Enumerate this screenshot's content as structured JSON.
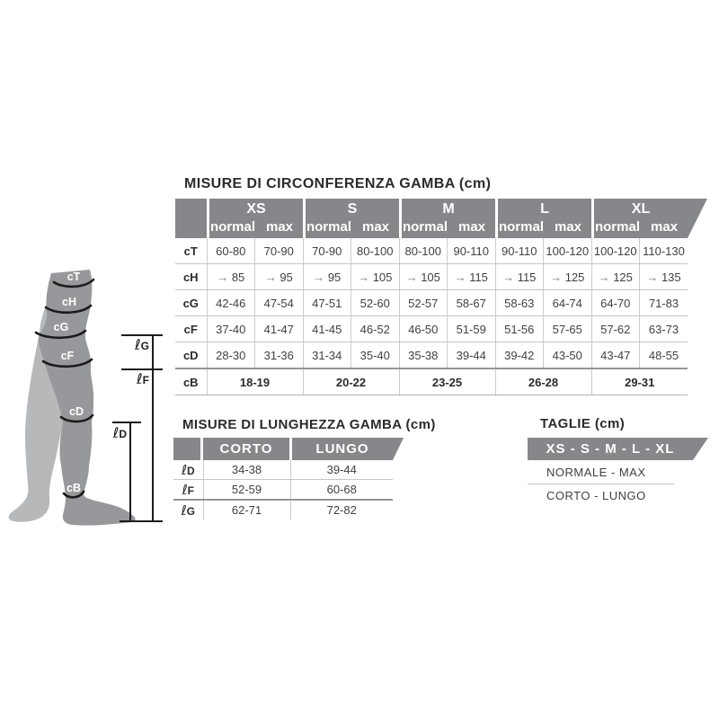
{
  "colors": {
    "header_gray": "#85878a",
    "title_text": "#2b2b2b",
    "body_text": "#414042",
    "line_light": "#cbccce",
    "line_medium": "#939598",
    "arrow_gray": "#77787b",
    "leg_front": "#96989b",
    "leg_back": "#b6b8ba",
    "band_black": "#1c1c1c",
    "header_text": "#ffffff"
  },
  "circumference_table": {
    "title": "MISURE DI CIRCONFERENZA GAMBA (cm)",
    "sizes": [
      "XS",
      "S",
      "M",
      "L",
      "XL"
    ],
    "sub_headers": [
      "normal",
      "max"
    ],
    "arrow_glyph": "→",
    "rows": [
      {
        "label": "cT",
        "values": [
          "60-80",
          "70-90",
          "70-90",
          "80-100",
          "80-100",
          "90-110",
          "90-110",
          "100-120",
          "100-120",
          "110-130"
        ]
      },
      {
        "label": "cH",
        "arrow": true,
        "values": [
          "85",
          "95",
          "95",
          "105",
          "105",
          "115",
          "115",
          "125",
          "125",
          "135"
        ]
      },
      {
        "label": "cG",
        "values": [
          "42-46",
          "47-54",
          "47-51",
          "52-60",
          "52-57",
          "58-67",
          "58-63",
          "64-74",
          "64-70",
          "71-83"
        ]
      },
      {
        "label": "cF",
        "values": [
          "37-40",
          "41-47",
          "41-45",
          "46-52",
          "46-50",
          "51-59",
          "51-56",
          "57-65",
          "57-62",
          "63-73"
        ]
      },
      {
        "label": "cD",
        "values": [
          "28-30",
          "31-36",
          "31-34",
          "35-40",
          "35-38",
          "39-44",
          "39-42",
          "43-50",
          "43-47",
          "48-55"
        ]
      }
    ],
    "span_row": {
      "label": "cB",
      "values": [
        "18-19",
        "20-22",
        "23-25",
        "26-28",
        "29-31"
      ]
    }
  },
  "length_table": {
    "title": "MISURE DI LUNGHEZZA GAMBA (cm)",
    "columns": [
      "CORTO",
      "LUNGO"
    ],
    "rows": [
      {
        "symbol": "ℓ",
        "letter": "D",
        "values": [
          "34-38",
          "39-44"
        ]
      },
      {
        "symbol": "ℓ",
        "letter": "F",
        "values": [
          "52-59",
          "60-68"
        ]
      },
      {
        "symbol": "ℓ",
        "letter": "G",
        "values": [
          "62-71",
          "72-82"
        ]
      }
    ]
  },
  "sizes_panel": {
    "title": "TAGLIE (cm)",
    "banner": "XS - S - M - L - XL",
    "line1": "NORMALE - MAX",
    "line2": "CORTO - LUNGO"
  },
  "leg_diagram": {
    "bands": [
      "cT",
      "cH",
      "cG",
      "cF",
      "cD",
      "cB"
    ],
    "length_markers": [
      {
        "symbol": "ℓ",
        "letter": "G"
      },
      {
        "symbol": "ℓ",
        "letter": "F"
      },
      {
        "symbol": "ℓ",
        "letter": "D"
      }
    ]
  }
}
